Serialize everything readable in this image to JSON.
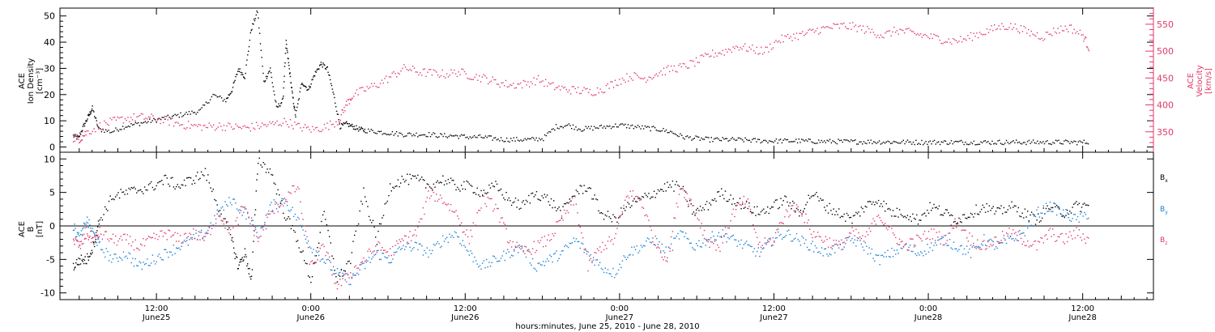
{
  "chart_data": [
    {
      "type": "scatter",
      "ylabel_left": [
        "ACE",
        "Ion Density",
        "[cm⁻³]"
      ],
      "ylabel_right": [
        "ACE",
        "Velocity",
        "[km/s]"
      ],
      "ylim_left": [
        -2,
        53
      ],
      "ylim_right": [
        312,
        580
      ],
      "yticks_left": [
        0,
        10,
        20,
        30,
        40,
        50
      ],
      "yticks_right": [
        350,
        400,
        450,
        500,
        550
      ],
      "colors": {
        "density": "#000000",
        "velocity": "#e0386a"
      },
      "series": [
        {
          "key": "density",
          "x": [
            0,
            0.8,
            1.6,
            2.4,
            3,
            4,
            6,
            8,
            10,
            12,
            14,
            16,
            18,
            20,
            22,
            24,
            25,
            26,
            27,
            28,
            29,
            30,
            31,
            32,
            33,
            33.5,
            34,
            34.5,
            35,
            36,
            37,
            38,
            39,
            40,
            41,
            42,
            43,
            44,
            45,
            46,
            48,
            50,
            52,
            54,
            56,
            58,
            60,
            62,
            64,
            66,
            68,
            70,
            72,
            74,
            76,
            78,
            80,
            82,
            84,
            86,
            88,
            90,
            92,
            94,
            96,
            98,
            100,
            102,
            104,
            106,
            108,
            110,
            112,
            114,
            116,
            118,
            120,
            122,
            124,
            126,
            128,
            130,
            132,
            134,
            136,
            138,
            140,
            142,
            144,
            146,
            148,
            150,
            152,
            154,
            156,
            158,
            160
          ],
          "y": [
            4.5,
            3.5,
            8,
            12,
            15,
            7,
            6,
            8,
            9,
            10,
            11,
            12,
            13,
            14,
            20,
            18,
            22,
            30,
            27,
            45,
            52,
            25,
            30,
            15,
            18,
            40,
            30,
            20,
            12,
            25,
            22,
            28,
            32,
            30,
            20,
            8,
            9,
            8,
            7,
            6.5,
            6,
            5.5,
            5,
            5,
            5,
            4.5,
            4.5,
            4,
            4,
            3.5,
            3,
            3,
            3,
            3.5,
            8,
            8.5,
            7,
            7.5,
            8,
            8.5,
            8,
            7.5,
            7,
            6,
            4,
            3.5,
            3,
            3,
            3,
            2.8,
            2.6,
            2.5,
            2.5,
            2.5,
            2.4,
            2.3,
            2.3,
            2.2,
            2.2,
            2.2,
            2.1,
            2.1,
            2,
            2,
            2,
            2,
            2,
            2,
            2,
            2,
            2,
            2,
            2,
            2,
            2,
            2,
            2
          ]
        },
        {
          "key": "velocity",
          "x": [
            0,
            1,
            2,
            4,
            6,
            8,
            10,
            12,
            14,
            16,
            18,
            20,
            22,
            24,
            26,
            28,
            30,
            32,
            34,
            36,
            38,
            40,
            41,
            42,
            44,
            46,
            48,
            50,
            52,
            54,
            56,
            58,
            60,
            62,
            64,
            66,
            68,
            70,
            72,
            74,
            76,
            78,
            80,
            82,
            84,
            86,
            88,
            90,
            92,
            94,
            96,
            98,
            100,
            102,
            104,
            106,
            108,
            110,
            112,
            114,
            116,
            118,
            120,
            122,
            124,
            126,
            128,
            130,
            132,
            134,
            136,
            138,
            140,
            142,
            144,
            146,
            148,
            150,
            152,
            153
          ],
          "y": [
            340,
            338,
            350,
            362,
            370,
            376,
            378,
            376,
            372,
            365,
            362,
            360,
            362,
            360,
            358,
            362,
            365,
            370,
            360,
            355,
            360,
            372,
            400,
            418,
            430,
            440,
            455,
            470,
            462,
            460,
            458,
            462,
            455,
            450,
            442,
            438,
            440,
            448,
            436,
            430,
            428,
            425,
            432,
            445,
            455,
            450,
            460,
            468,
            472,
            482,
            495,
            500,
            510,
            505,
            500,
            520,
            528,
            532,
            540,
            545,
            548,
            545,
            538,
            530,
            540,
            535,
            530,
            525,
            520,
            522,
            532,
            540,
            548,
            545,
            535,
            528,
            540,
            545,
            530,
            505
          ]
        }
      ]
    },
    {
      "type": "scatter",
      "ylabel": [
        "ACE",
        "B",
        "[nT]"
      ],
      "ylim": [
        -11,
        11
      ],
      "yticks": [
        -10,
        -5,
        0,
        5,
        10
      ],
      "colors": {
        "Bx": "#000000",
        "By": "#1a7fd4",
        "Bz": "#e0386a"
      },
      "legend": [
        {
          "key": "Bx",
          "label": "B",
          "sub": "x"
        },
        {
          "key": "By",
          "label": "B",
          "sub": "y"
        },
        {
          "key": "Bz",
          "label": "B",
          "sub": "z"
        }
      ],
      "series": [
        {
          "key": "Bx",
          "x": [
            0,
            1,
            2,
            3,
            4,
            6,
            8,
            10,
            12,
            14,
            16,
            18,
            20,
            22,
            24,
            25,
            26,
            27,
            28,
            30,
            32,
            34,
            36,
            38,
            40,
            42,
            44,
            46,
            48,
            50,
            52,
            54,
            56,
            58,
            60,
            62,
            64,
            66,
            68,
            70,
            72,
            74,
            76,
            78,
            80,
            82,
            84,
            86,
            88,
            90,
            92,
            94,
            96,
            98,
            100,
            102,
            104,
            106,
            108,
            110,
            112,
            114,
            116,
            118,
            120,
            122,
            124,
            126,
            128,
            130,
            132,
            134,
            136,
            138,
            140,
            142,
            144,
            146,
            148,
            150,
            152,
            154
          ],
          "y": [
            -6,
            -5,
            -5,
            -3,
            1,
            4.5,
            5,
            5.5,
            6,
            7,
            6,
            7,
            8,
            3,
            -2,
            -6,
            -4,
            -8,
            10,
            8,
            2,
            -2,
            -8,
            2,
            -8,
            -5,
            5,
            -2,
            6,
            7,
            7,
            6,
            7,
            6,
            6,
            5,
            6,
            4,
            3,
            5,
            4,
            2,
            5,
            6,
            2,
            1,
            3,
            4,
            5,
            6,
            6,
            2,
            3,
            5,
            4,
            3,
            2,
            3,
            4,
            2,
            5,
            3,
            2,
            1,
            3,
            4,
            2,
            2,
            1,
            3,
            2,
            1,
            2,
            3,
            2,
            3,
            2,
            1,
            3,
            2,
            3,
            3
          ]
        },
        {
          "key": "By",
          "x": [
            0,
            1,
            2,
            3,
            4,
            6,
            8,
            10,
            12,
            14,
            16,
            18,
            20,
            22,
            24,
            26,
            28,
            30,
            32,
            34,
            36,
            38,
            40,
            42,
            44,
            46,
            48,
            50,
            52,
            54,
            56,
            58,
            60,
            62,
            64,
            66,
            68,
            70,
            72,
            74,
            76,
            78,
            80,
            82,
            84,
            86,
            88,
            90,
            92,
            94,
            96,
            98,
            100,
            102,
            104,
            106,
            108,
            110,
            112,
            114,
            116,
            118,
            120,
            122,
            124,
            126,
            128,
            130,
            132,
            134,
            136,
            138,
            140,
            142,
            144,
            146,
            148,
            150,
            152,
            154
          ],
          "y": [
            0,
            -2,
            1,
            -1,
            -3,
            -5,
            -4,
            -6,
            -5,
            -4,
            -3,
            -2,
            -1,
            2,
            4,
            2,
            -1,
            3,
            4,
            1,
            -3,
            -5,
            -7,
            -8,
            -6,
            -4,
            -5,
            -3,
            -3,
            -4,
            -2,
            -1,
            -4,
            -6,
            -5,
            -4,
            -3,
            -6,
            -5,
            -4,
            -2,
            -4,
            -6,
            -7,
            -4,
            -3,
            -2,
            -4,
            -1,
            -3,
            -2,
            -1,
            -2,
            -3,
            -4,
            -2,
            -1,
            -2,
            -3,
            -4,
            -3,
            -2,
            -3,
            -5,
            -4,
            -3,
            -4,
            -3,
            -2,
            -3,
            -4,
            -2,
            -3,
            -2,
            -1,
            2,
            3,
            2,
            1,
            2
          ]
        },
        {
          "key": "Bz",
          "x": [
            0,
            1,
            2,
            3,
            4,
            6,
            8,
            10,
            12,
            14,
            16,
            18,
            20,
            22,
            24,
            26,
            28,
            30,
            32,
            34,
            36,
            38,
            40,
            42,
            44,
            46,
            48,
            50,
            52,
            54,
            56,
            58,
            60,
            62,
            64,
            66,
            68,
            70,
            72,
            74,
            76,
            78,
            80,
            82,
            84,
            86,
            88,
            90,
            92,
            94,
            96,
            98,
            100,
            102,
            104,
            106,
            108,
            110,
            112,
            114,
            116,
            118,
            120,
            122,
            124,
            126,
            128,
            130,
            132,
            134,
            136,
            138,
            140,
            142,
            144,
            146,
            148,
            150,
            152,
            154
          ],
          "y": [
            -2,
            -3,
            -1,
            -2,
            -1,
            -2,
            -2,
            -3,
            -2,
            -1,
            -2,
            -1,
            -2,
            2,
            -1,
            3,
            -2,
            2,
            4,
            6,
            -6,
            -3,
            -9,
            -7,
            -5,
            -3,
            -4,
            -2,
            -1,
            5,
            4,
            2,
            -2,
            4,
            3,
            -2,
            -4,
            -3,
            -2,
            1,
            4,
            -6,
            -3,
            -2,
            5,
            4,
            -2,
            -5,
            6,
            3,
            -2,
            -3,
            2,
            4,
            -3,
            -2,
            2,
            3,
            -1,
            -2,
            -3,
            -1,
            -2,
            2,
            -1,
            -3,
            -2,
            -1,
            -2,
            1,
            -2,
            -3,
            -2,
            -1,
            -2,
            -3,
            -1,
            -2,
            -1,
            -2
          ]
        }
      ]
    }
  ],
  "x_axis": {
    "ticks": [
      {
        "time": "12:00",
        "date": "June25",
        "hour": 12
      },
      {
        "time": "0:00",
        "date": "June26",
        "hour": 24
      },
      {
        "time": "12:00",
        "date": "June26",
        "hour": 36
      },
      {
        "time": "0:00",
        "date": "June27",
        "hour": 48
      },
      {
        "time": "12:00",
        "date": "June27",
        "hour": 60
      },
      {
        "time": "0:00",
        "date": "June28",
        "hour": 72
      },
      {
        "time": "12:00",
        "date": "June28",
        "hour": 84
      }
    ],
    "label": "hours:minutes, June 25, 2010 - June 28, 2010",
    "xlim_hours": [
      4.5,
      89.5
    ]
  }
}
